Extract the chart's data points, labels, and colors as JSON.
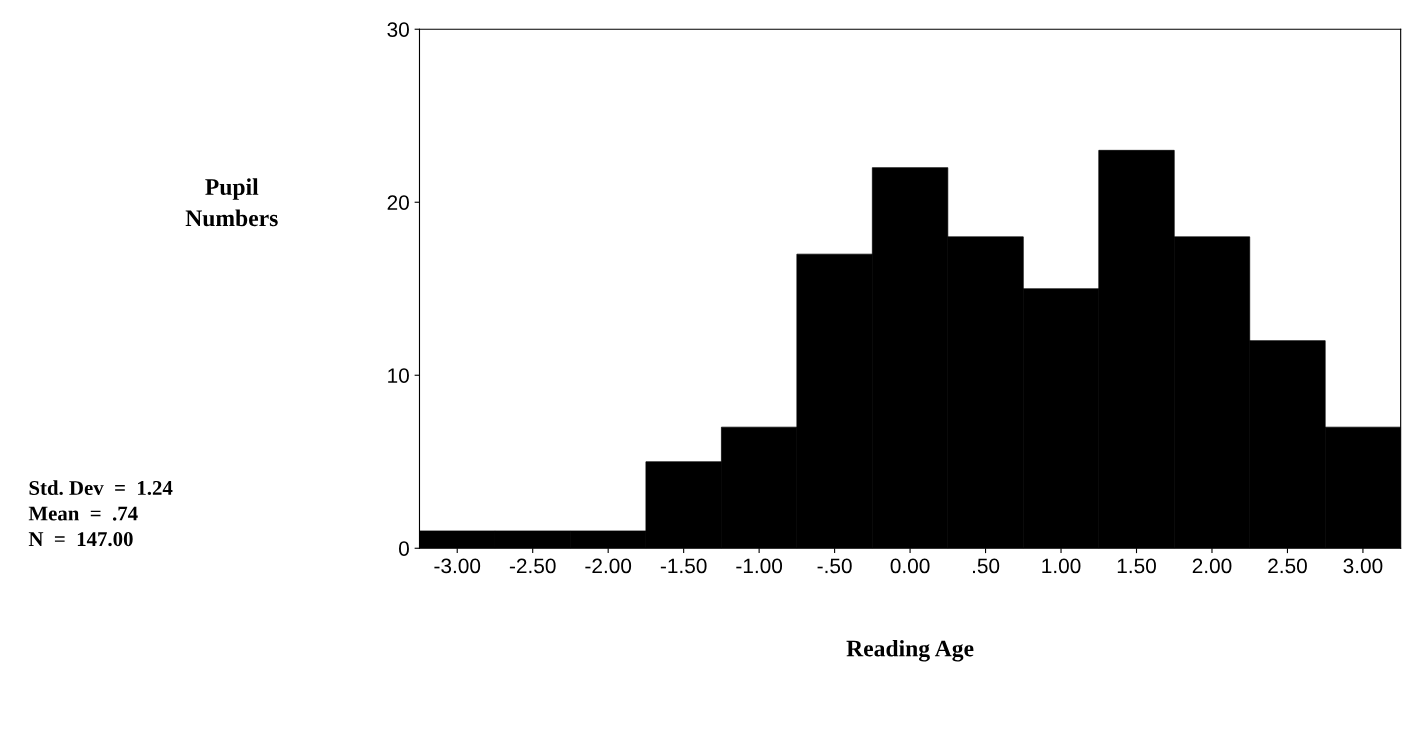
{
  "chart_data": {
    "type": "histogram",
    "xlabel": "Reading Age",
    "ylabel": "Pupil Numbers",
    "bins": [
      -3.25,
      -2.75,
      -2.25,
      -1.75,
      -1.25,
      -0.75,
      -0.25,
      0.25,
      0.75,
      1.25,
      1.75,
      2.25,
      2.75,
      3.25
    ],
    "values": [
      1,
      1,
      1,
      5,
      7,
      17,
      22,
      18,
      15,
      23,
      18,
      12,
      7
    ],
    "color": "#000000",
    "xlim": [
      -3.25,
      3.25
    ],
    "xticks": [
      {
        "value": -3,
        "label": "-3.00"
      },
      {
        "value": -2.5,
        "label": "-2.50"
      },
      {
        "value": -2,
        "label": "-2.00"
      },
      {
        "value": -1.5,
        "label": "-1.50"
      },
      {
        "value": -1,
        "label": "-1.00"
      },
      {
        "value": -0.5,
        "label": "-.50"
      },
      {
        "value": 0,
        "label": "0.00"
      },
      {
        "value": 0.5,
        "label": ".50"
      },
      {
        "value": 1,
        "label": "1.00"
      },
      {
        "value": 1.5,
        "label": "1.50"
      },
      {
        "value": 2,
        "label": "2.00"
      },
      {
        "value": 2.5,
        "label": "2.50"
      },
      {
        "value": 3,
        "label": "3.00"
      }
    ],
    "ylim": [
      0,
      30
    ],
    "yticks": [
      0,
      10,
      20,
      30
    ],
    "grid": false,
    "legend": false,
    "annotations": [
      "Std. Dev  =  1.24",
      "Mean  =  .74",
      "N  =  147.00"
    ]
  }
}
